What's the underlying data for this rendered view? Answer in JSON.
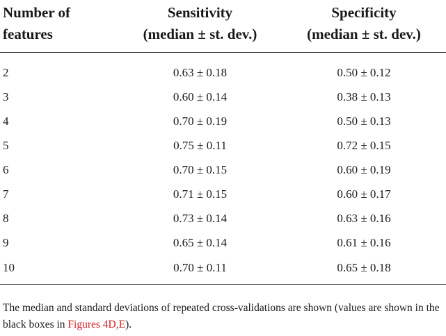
{
  "table": {
    "headers": {
      "col1_line1": "Number of",
      "col1_line2": "features",
      "col2_line1": "Sensitivity",
      "col2_line2": "(median ± st. dev.)",
      "col3_line1": "Specificity",
      "col3_line2": "(median ± st. dev.)"
    },
    "rows": [
      {
        "features": "2",
        "sensitivity": "0.63 ± 0.18",
        "specificity": "0.50 ± 0.12"
      },
      {
        "features": "3",
        "sensitivity": "0.60 ± 0.14",
        "specificity": "0.38 ± 0.13"
      },
      {
        "features": "4",
        "sensitivity": "0.70 ± 0.19",
        "specificity": "0.50 ± 0.13"
      },
      {
        "features": "5",
        "sensitivity": "0.75 ± 0.11",
        "specificity": "0.72 ± 0.15"
      },
      {
        "features": "6",
        "sensitivity": "0.70 ± 0.15",
        "specificity": "0.60 ± 0.19"
      },
      {
        "features": "7",
        "sensitivity": "0.71 ± 0.15",
        "specificity": "0.60 ± 0.17"
      },
      {
        "features": "8",
        "sensitivity": "0.73 ± 0.14",
        "specificity": "0.63 ± 0.16"
      },
      {
        "features": "9",
        "sensitivity": "0.65 ± 0.14",
        "specificity": "0.61 ± 0.16"
      },
      {
        "features": "10",
        "sensitivity": "0.70 ± 0.11",
        "specificity": "0.65 ± 0.18"
      }
    ]
  },
  "footnote": {
    "text_before": "The median and standard deviations of repeated cross-validations are shown (values are shown in the black boxes in ",
    "link_text": "Figures 4D,E",
    "text_after": ")."
  },
  "colors": {
    "text": "#1a1a1a",
    "link": "#d2232a",
    "rule": "#333333"
  }
}
